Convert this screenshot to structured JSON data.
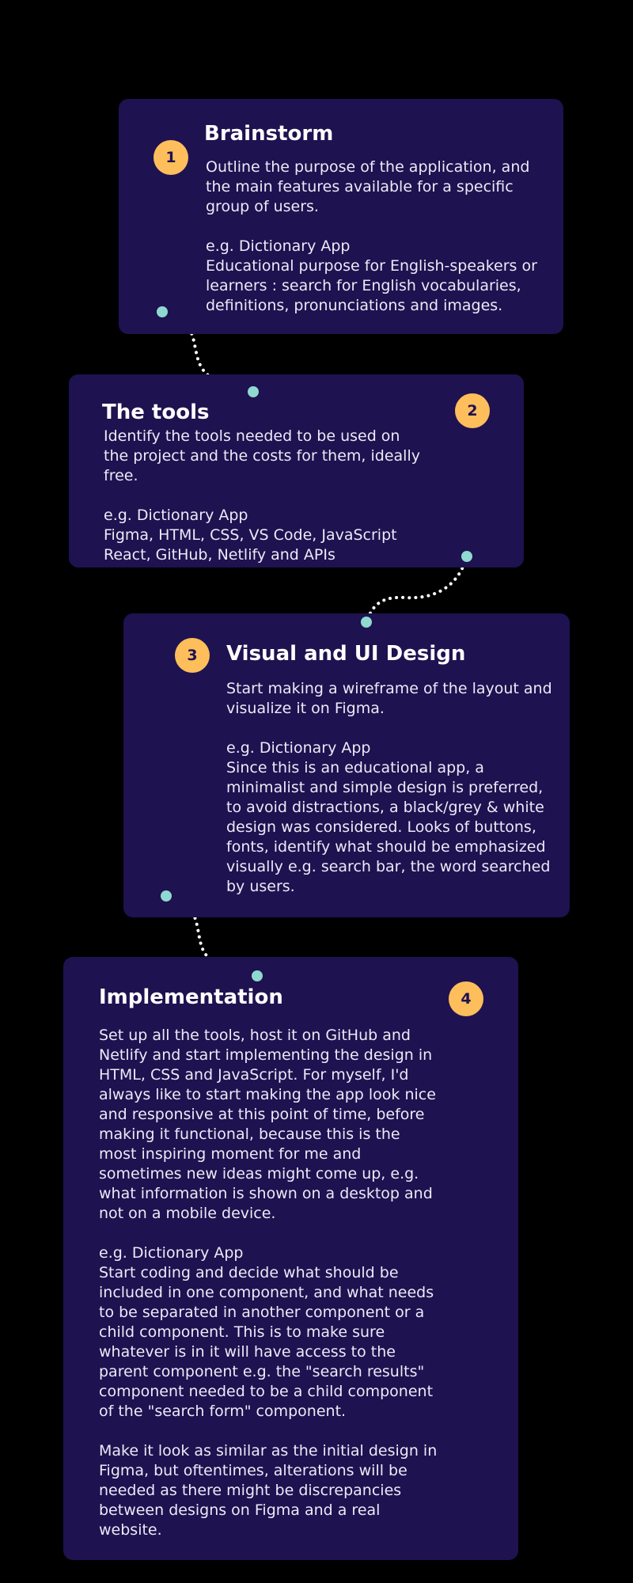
{
  "colors": {
    "background": "#000000",
    "card": "#1e1250",
    "badge": "#ffbe5c",
    "connector_dot": "#8fd9d0",
    "connector_line": "#ffffff"
  },
  "steps": [
    {
      "number": "1",
      "title": "Brainstorm",
      "description": "Outline the purpose of the application, and the main features available for a specific group of users.",
      "example_label": "e.g. Dictionary App",
      "example_text": "Educational purpose for English-speakers or learners : search for English vocabularies, definitions, pronunciations and images."
    },
    {
      "number": "2",
      "title": "The tools",
      "description": "Identify the tools needed to be used on the project and the costs for them, ideally free.",
      "example_label": "e.g. Dictionary App",
      "example_text": "Figma, HTML, CSS, VS Code, JavaScript React, GitHub, Netlify and APIs"
    },
    {
      "number": "3",
      "title": "Visual and UI Design",
      "description": "Start making a wireframe of the layout and visualize it on Figma.",
      "example_label": "e.g. Dictionary App",
      "example_text": "Since this is an educational app, a minimalist and simple design is preferred, to avoid distractions, a black/grey & white design was considered. Looks of buttons, fonts, identify what should be emphasized visually e.g. search bar, the word searched by users."
    },
    {
      "number": "4",
      "title": "Implementation",
      "description": "Set up all the tools, host it on GitHub and Netlify and start implementing the design in HTML, CSS and JavaScript. For myself, I'd always like to start making the app look nice and responsive at this point of time, before making it functional, because this is the most inspiring moment for me and sometimes new ideas might come up, e.g. what information is shown on a desktop and not on a mobile device.",
      "example_label": "e.g. Dictionary App",
      "example_text": "Start coding and decide what should be included in one component, and what needs to be separated in another component or a child component. This is to make sure whatever is in it will have access to the parent component e.g. the \"search results\" component needed to be a child component of the \"search form\" component.",
      "closing_text": "Make it look as similar as the initial design in Figma, but oftentimes, alterations will be needed as there might be discrepancies between designs on Figma and a real website."
    }
  ]
}
